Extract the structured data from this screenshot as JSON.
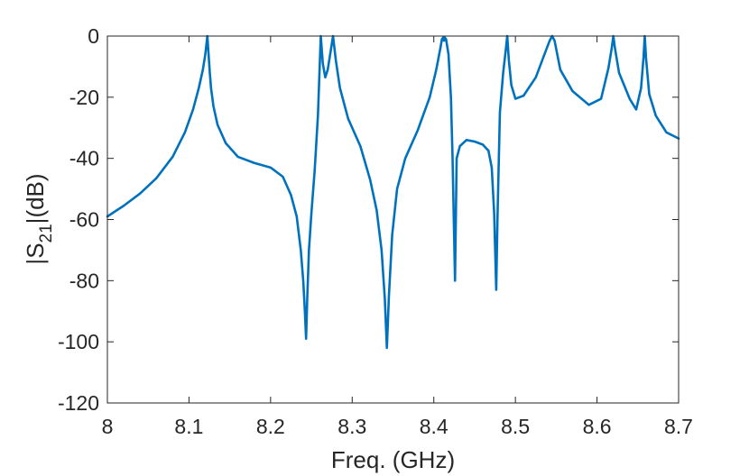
{
  "chart_data": {
    "type": "line",
    "xlabel": "Freq. (GHz)",
    "ylabel": {
      "prefix": "|S",
      "subscript": "21",
      "suffix": "|(dB)"
    },
    "xlim": [
      8,
      8.7
    ],
    "ylim": [
      -120,
      0
    ],
    "x_ticks": [
      8,
      8.1,
      8.2,
      8.3,
      8.4,
      8.5,
      8.6,
      8.7
    ],
    "x_tick_labels": [
      "8",
      "8.1",
      "8.2",
      "8.3",
      "8.4",
      "8.5",
      "8.6",
      "8.7"
    ],
    "y_ticks": [
      0,
      -20,
      -40,
      -60,
      -80,
      -100,
      -120
    ],
    "y_tick_labels": [
      "0",
      "-20",
      "-40",
      "-60",
      "-80",
      "-100",
      "-120"
    ],
    "grid": false,
    "series": [
      {
        "color": "#0072bd",
        "x": [
          8.0,
          8.02,
          8.04,
          8.06,
          8.08,
          8.095,
          8.105,
          8.112,
          8.117,
          8.12,
          8.1225,
          8.124,
          8.1255,
          8.127,
          8.13,
          8.135,
          8.145,
          8.16,
          8.18,
          8.2,
          8.215,
          8.225,
          8.232,
          8.237,
          8.24,
          8.242,
          8.2435,
          8.245,
          8.247,
          8.25,
          8.254,
          8.258,
          8.2615,
          8.264,
          8.267,
          8.27,
          8.273,
          8.2765,
          8.28,
          8.285,
          8.295,
          8.31,
          8.322,
          8.33,
          8.336,
          8.34,
          8.3425,
          8.345,
          8.349,
          8.355,
          8.365,
          8.38,
          8.395,
          8.403,
          8.408,
          8.41,
          8.4115,
          8.4125,
          8.4135,
          8.415,
          8.418,
          8.421,
          8.423,
          8.4245,
          8.426,
          8.428,
          8.432,
          8.44,
          8.45,
          8.46,
          8.467,
          8.471,
          8.474,
          8.4765,
          8.478,
          8.481,
          8.485,
          8.488,
          8.49,
          8.492,
          8.495,
          8.5,
          8.51,
          8.525,
          8.537,
          8.542,
          8.545,
          8.548,
          8.555,
          8.57,
          8.59,
          8.605,
          8.614,
          8.618,
          8.62,
          8.622,
          8.627,
          8.64,
          8.648,
          8.654,
          8.657,
          8.6585,
          8.66,
          8.664,
          8.672,
          8.685,
          8.7
        ],
        "y": [
          -59,
          -55.5,
          -51.5,
          -46.5,
          -39.5,
          -31.5,
          -24,
          -17,
          -11,
          -6,
          0,
          -6,
          -12,
          -17,
          -23,
          -29,
          -35,
          -39.5,
          -41.5,
          -43,
          -46,
          -52,
          -59,
          -70,
          -80,
          -90,
          -99,
          -85,
          -70,
          -58,
          -44,
          -26,
          0,
          -9,
          -13.5,
          -11,
          -6,
          0,
          -8,
          -17,
          -27,
          -36,
          -47,
          -57,
          -70,
          -86,
          -102,
          -85,
          -65,
          -50,
          -40,
          -31,
          -20,
          -11,
          -4,
          -1,
          -0.5,
          -1.5,
          -0.5,
          -1,
          -6,
          -20,
          -40,
          -60,
          -80,
          -40,
          -36,
          -34,
          -34.5,
          -35.5,
          -37.5,
          -43,
          -58,
          -83,
          -60,
          -25,
          -12,
          -5,
          0,
          -8,
          -16,
          -20.5,
          -19.5,
          -13.5,
          -5,
          -1.5,
          0,
          -1.5,
          -11,
          -18,
          -22.5,
          -20.5,
          -10.5,
          -4,
          0,
          -4,
          -12,
          -20.5,
          -24,
          -17,
          -7,
          0,
          -7,
          -19,
          -26,
          -31.5,
          -33.5
        ]
      }
    ]
  }
}
